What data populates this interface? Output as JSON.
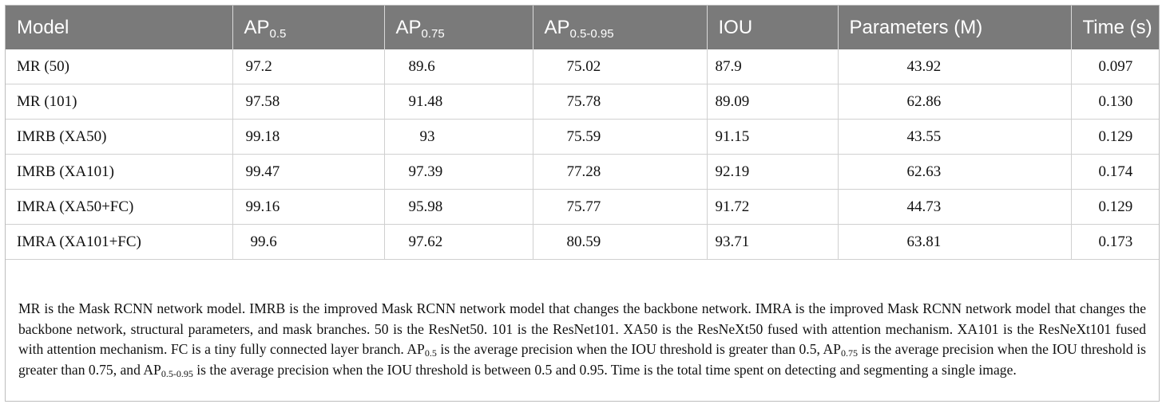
{
  "headers": {
    "model": "Model",
    "ap05_base": "AP",
    "ap05_sub": "0.5",
    "ap075_base": "AP",
    "ap075_sub": "0.75",
    "ap0595_base": "AP",
    "ap0595_sub": "0.5-0.95",
    "iou": "IOU",
    "params": "Parameters (M)",
    "time": "Time (s)"
  },
  "rows": [
    {
      "model": "MR (50)",
      "ap05": "97.2",
      "ap075": "89.6",
      "ap0595": "75.02",
      "iou": "87.9",
      "params": "43.92",
      "time": "0.097"
    },
    {
      "model": "MR (101)",
      "ap05": "97.58",
      "ap075": "91.48",
      "ap0595": "75.78",
      "iou": "89.09",
      "params": "62.86",
      "time": "0.130"
    },
    {
      "model": "IMRB (XA50)",
      "ap05": "99.18",
      "ap075": "93",
      "ap0595": "75.59",
      "iou": "91.15",
      "params": "43.55",
      "time": "0.129"
    },
    {
      "model": "IMRB (XA101)",
      "ap05": "99.47",
      "ap075": "97.39",
      "ap0595": "77.28",
      "iou": "92.19",
      "params": "62.63",
      "time": "0.174"
    },
    {
      "model": "IMRA (XA50+FC)",
      "ap05": "99.16",
      "ap075": "95.98",
      "ap0595": "75.77",
      "iou": "91.72",
      "params": "44.73",
      "time": "0.129"
    },
    {
      "model": "IMRA (XA101+FC)",
      "ap05": "99.6",
      "ap075": "97.62",
      "ap0595": "80.59",
      "iou": "93.71",
      "params": "63.81",
      "time": "0.173"
    }
  ],
  "footnote": {
    "p1": "MR is the Mask RCNN network model. IMRB is the improved Mask RCNN network model that changes the backbone network. IMRA is the improved Mask RCNN network model that changes the backbone network, structural parameters, and mask branches. 50 is the ResNet50. 101 is the ResNet101. XA50 is the ResNeXt50 fused with attention mechanism. XA101 is the ResNeXt101 fused with attention mechanism. FC is a tiny fully connected layer branch. ",
    "ap_a": "AP",
    "ap_a_sub": "0.5",
    "p2": " is the average precision when the IOU threshold is greater than 0.5, ",
    "ap_b": "AP",
    "ap_b_sub": "0.75",
    "p3": " is the average precision when the IOU threshold is greater than 0.75, and ",
    "ap_c": "AP",
    "ap_c_sub": "0.5-0.95",
    "p4": " is the average precision when the IOU threshold is between 0.5 and 0.95. Time is the total time spent on detecting and segmenting a single image."
  }
}
